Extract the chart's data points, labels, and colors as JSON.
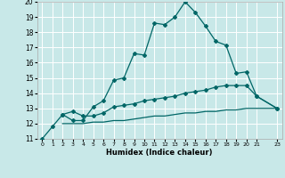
{
  "background_color": "#c8e8e8",
  "grid_color": "#ffffff",
  "line_color": "#006666",
  "xlabel": "Humidex (Indice chaleur)",
  "xlim": [
    -0.5,
    23.5
  ],
  "ylim": [
    11,
    20
  ],
  "xticks": [
    0,
    1,
    2,
    3,
    4,
    5,
    6,
    7,
    8,
    9,
    10,
    11,
    12,
    13,
    14,
    15,
    16,
    17,
    18,
    19,
    20,
    21,
    23
  ],
  "yticks": [
    11,
    12,
    13,
    14,
    15,
    16,
    17,
    18,
    19,
    20
  ],
  "line1_x": [
    0,
    1,
    2,
    3,
    4,
    5,
    6,
    7,
    8,
    9,
    10,
    11,
    12,
    13,
    14,
    15,
    16,
    17,
    18,
    19,
    20,
    21,
    23
  ],
  "line1_y": [
    11,
    11.8,
    12.6,
    12.2,
    12.2,
    13.1,
    13.5,
    14.85,
    15.0,
    16.6,
    16.5,
    18.6,
    18.5,
    19.0,
    20.0,
    19.3,
    18.4,
    17.4,
    17.15,
    15.3,
    15.4,
    13.8,
    13.0
  ],
  "line2_x": [
    2,
    3,
    4,
    5,
    6,
    7,
    8,
    9,
    10,
    11,
    12,
    13,
    14,
    15,
    16,
    17,
    18,
    19,
    20,
    21,
    23
  ],
  "line2_y": [
    12.6,
    12.8,
    12.5,
    12.5,
    12.7,
    13.1,
    13.2,
    13.3,
    13.5,
    13.6,
    13.7,
    13.8,
    14.0,
    14.1,
    14.2,
    14.4,
    14.5,
    14.5,
    14.5,
    13.8,
    13.0
  ],
  "line3_x": [
    2,
    3,
    4,
    5,
    6,
    7,
    8,
    9,
    10,
    11,
    12,
    13,
    14,
    15,
    16,
    17,
    18,
    19,
    20,
    21,
    23
  ],
  "line3_y": [
    12.0,
    12.0,
    12.0,
    12.1,
    12.1,
    12.2,
    12.2,
    12.3,
    12.4,
    12.5,
    12.5,
    12.6,
    12.7,
    12.7,
    12.8,
    12.8,
    12.9,
    12.9,
    13.0,
    13.0,
    13.0
  ]
}
